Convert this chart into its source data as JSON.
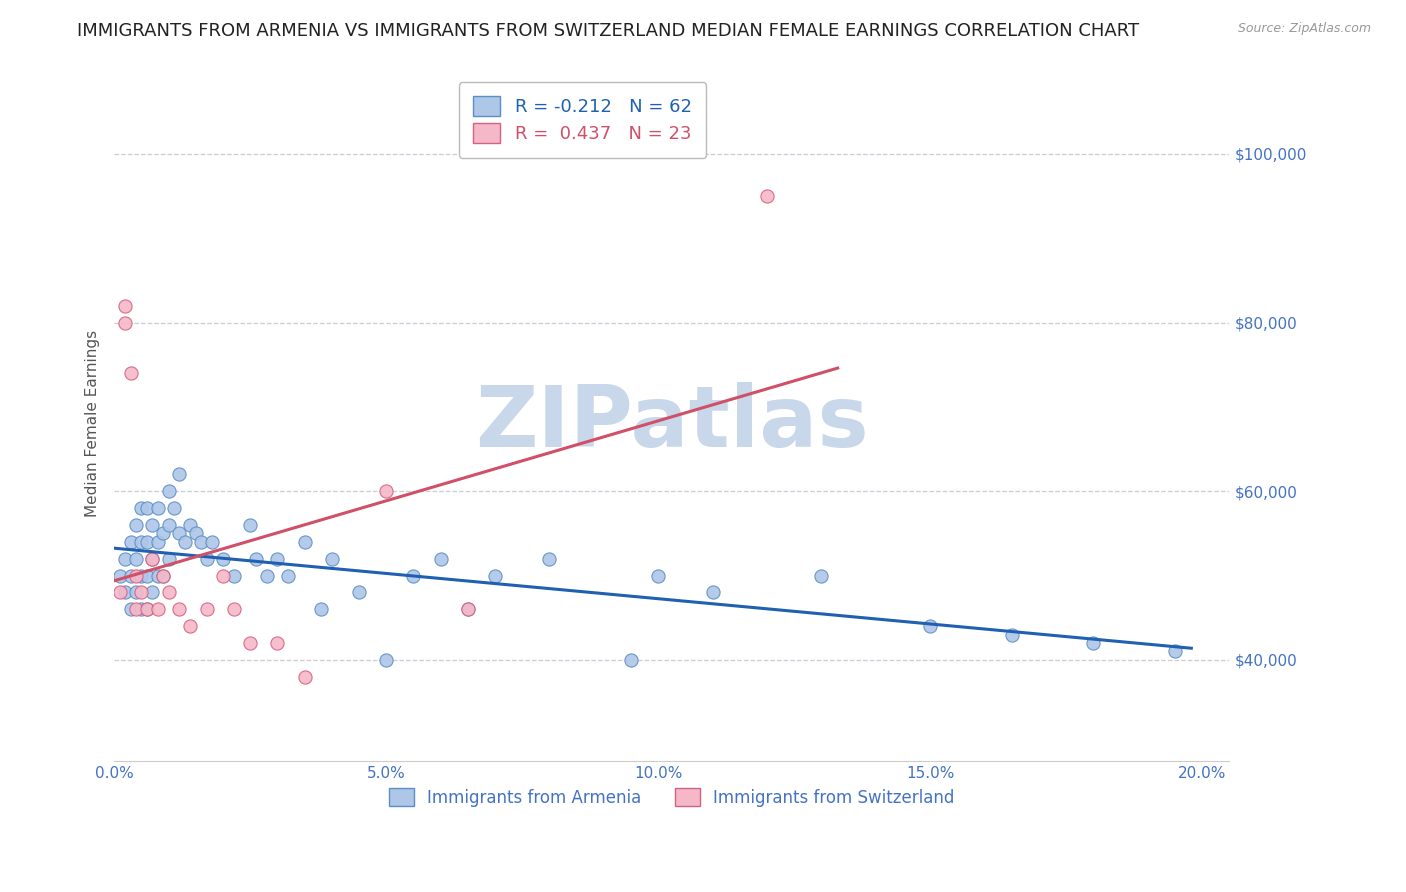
{
  "title": "IMMIGRANTS FROM ARMENIA VS IMMIGRANTS FROM SWITZERLAND MEDIAN FEMALE EARNINGS CORRELATION CHART",
  "source": "Source: ZipAtlas.com",
  "ylabel": "Median Female Earnings",
  "xlim": [
    0.0,
    0.205
  ],
  "ylim": [
    28000,
    108000
  ],
  "yticks": [
    40000,
    60000,
    80000,
    100000
  ],
  "ytick_labels": [
    "$40,000",
    "$60,000",
    "$80,000",
    "$100,000"
  ],
  "xticks": [
    0.0,
    0.05,
    0.1,
    0.15,
    0.2
  ],
  "xtick_labels": [
    "0.0%",
    "5.0%",
    "10.0%",
    "15.0%",
    "20.0%"
  ],
  "armenia_color": "#aec6e8",
  "armenia_edge": "#5b8fc4",
  "switzerland_color": "#f4b8c8",
  "switzerland_edge": "#d86080",
  "trend_armenia_color": "#2060b0",
  "trend_switzerland_color": "#d05068",
  "legend_label_armenia": "R = -0.212   N = 62",
  "legend_label_switzerland": "R =  0.437   N = 23",
  "legend_bottom_armenia": "Immigrants from Armenia",
  "legend_bottom_switzerland": "Immigrants from Switzerland",
  "watermark": "ZIPatlas",
  "watermark_color": "#c8d8ea",
  "background_color": "#ffffff",
  "grid_color": "#c8cdd8",
  "title_fontsize": 13,
  "tick_fontsize": 11,
  "tick_color": "#4472c4",
  "armenia_x": [
    0.001,
    0.002,
    0.002,
    0.003,
    0.003,
    0.003,
    0.004,
    0.004,
    0.004,
    0.005,
    0.005,
    0.005,
    0.005,
    0.006,
    0.006,
    0.006,
    0.006,
    0.007,
    0.007,
    0.007,
    0.008,
    0.008,
    0.008,
    0.009,
    0.009,
    0.01,
    0.01,
    0.01,
    0.011,
    0.012,
    0.012,
    0.013,
    0.014,
    0.015,
    0.016,
    0.017,
    0.018,
    0.02,
    0.022,
    0.025,
    0.026,
    0.028,
    0.03,
    0.032,
    0.035,
    0.038,
    0.04,
    0.045,
    0.05,
    0.055,
    0.06,
    0.065,
    0.07,
    0.08,
    0.095,
    0.1,
    0.11,
    0.13,
    0.15,
    0.165,
    0.18,
    0.195
  ],
  "armenia_y": [
    50000,
    52000,
    48000,
    54000,
    50000,
    46000,
    56000,
    52000,
    48000,
    58000,
    54000,
    50000,
    46000,
    58000,
    54000,
    50000,
    46000,
    56000,
    52000,
    48000,
    58000,
    54000,
    50000,
    55000,
    50000,
    60000,
    56000,
    52000,
    58000,
    62000,
    55000,
    54000,
    56000,
    55000,
    54000,
    52000,
    54000,
    52000,
    50000,
    56000,
    52000,
    50000,
    52000,
    50000,
    54000,
    46000,
    52000,
    48000,
    40000,
    50000,
    52000,
    46000,
    50000,
    52000,
    40000,
    50000,
    48000,
    50000,
    44000,
    43000,
    42000,
    41000
  ],
  "switzerland_x": [
    0.001,
    0.002,
    0.002,
    0.003,
    0.004,
    0.004,
    0.005,
    0.006,
    0.007,
    0.008,
    0.009,
    0.01,
    0.012,
    0.014,
    0.017,
    0.02,
    0.022,
    0.025,
    0.03,
    0.035,
    0.05,
    0.065,
    0.12
  ],
  "switzerland_y": [
    48000,
    82000,
    80000,
    74000,
    50000,
    46000,
    48000,
    46000,
    52000,
    46000,
    50000,
    48000,
    46000,
    44000,
    46000,
    50000,
    46000,
    42000,
    42000,
    38000,
    60000,
    46000,
    95000
  ]
}
